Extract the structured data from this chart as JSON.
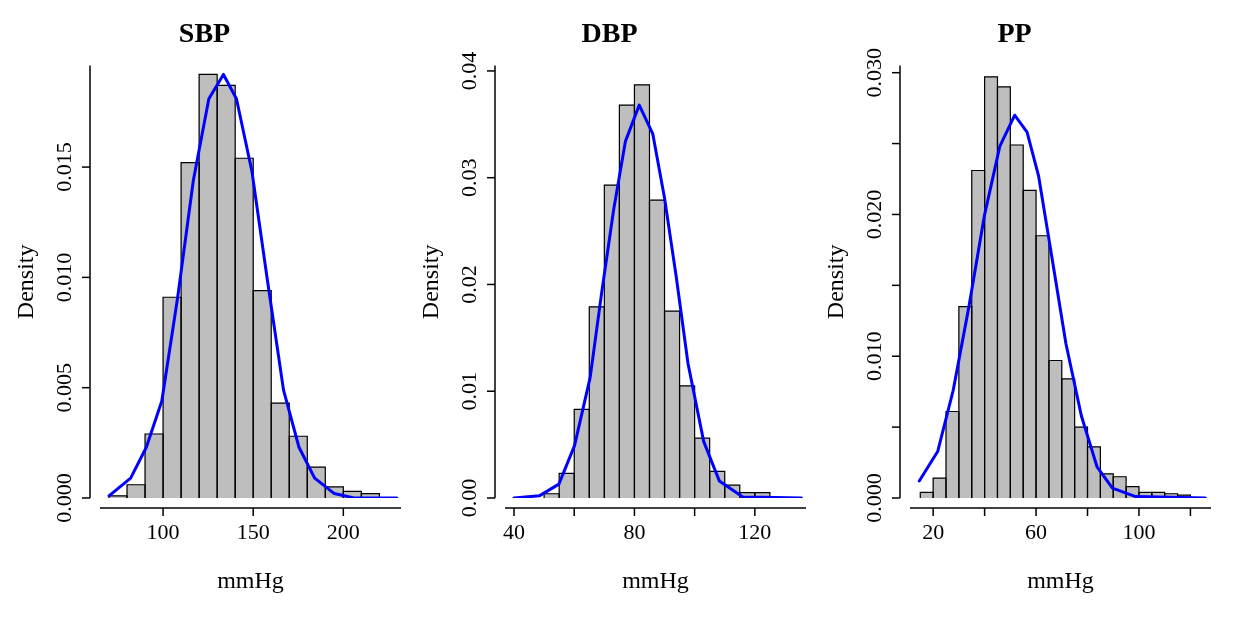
{
  "chart_data": [
    {
      "type": "histogram",
      "title": "SBP",
      "xlabel": "mmHg",
      "ylabel": "Density",
      "color": "#bebebe",
      "bins": [
        70,
        80,
        90,
        100,
        110,
        120,
        130,
        140,
        150,
        160,
        170,
        180,
        190,
        200,
        210,
        220
      ],
      "values": [
        0.0001,
        0.0006,
        0.0029,
        0.0091,
        0.0152,
        0.0192,
        0.0187,
        0.0154,
        0.0094,
        0.0043,
        0.0028,
        0.0014,
        0.0005,
        0.0003,
        0.0002
      ],
      "xlim": [
        65,
        232
      ],
      "ylim": [
        0,
        0.0196
      ],
      "xticks": [
        100,
        150,
        200
      ],
      "yticks": [
        {
          "value": 0,
          "label": "0.000"
        },
        {
          "value": 0.005,
          "label": "0.005"
        },
        {
          "value": 0.01,
          "label": "0.010"
        },
        {
          "value": 0.015,
          "label": "0.015"
        }
      ],
      "grid": false,
      "series": [
        {
          "type": "line",
          "color": "#0000ff",
          "x": [
            70,
            82,
            90.7,
            99.3,
            108.1,
            116.8,
            125.4,
            133.5,
            140.7,
            149.3,
            158,
            166.8,
            175.4,
            184.1,
            195,
            205.9,
            229.7
          ],
          "values": [
            0.0001,
            0.0009,
            0.0023,
            0.0044,
            0.0091,
            0.0144,
            0.0181,
            0.0192,
            0.0181,
            0.0148,
            0.0098,
            0.0049,
            0.0023,
            0.0009,
            0.0002,
            0,
            0
          ]
        }
      ]
    },
    {
      "type": "histogram",
      "title": "DBP",
      "xlabel": "mmHg",
      "ylabel": "Density",
      "color": "#bebebe",
      "bins": [
        50,
        55,
        60,
        65,
        70,
        75,
        80,
        85,
        90,
        95,
        100,
        105,
        110,
        115,
        120,
        125
      ],
      "values": [
        0.0004,
        0.0023,
        0.0083,
        0.0179,
        0.0293,
        0.0368,
        0.0387,
        0.0279,
        0.0175,
        0.0105,
        0.0056,
        0.0025,
        0.0012,
        0.0005,
        0.0005
      ],
      "xlim": [
        37,
        137
      ],
      "ylim": [
        0,
        0.0405
      ],
      "xticks": [
        40,
        {
          "value": 60,
          "label": null
        },
        80,
        {
          "value": 100,
          "label": null
        },
        120
      ],
      "yticks": [
        {
          "value": 0,
          "label": "0.00"
        },
        {
          "value": 0.01,
          "label": "0.01"
        },
        {
          "value": 0.02,
          "label": "0.02"
        },
        {
          "value": 0.03,
          "label": "0.03"
        },
        {
          "value": 0.04,
          "label": "0.04"
        }
      ],
      "grid": false,
      "series": [
        {
          "type": "line",
          "color": "#0000ff",
          "x": [
            40,
            48.4,
            54.9,
            60.1,
            65.3,
            69.2,
            73.1,
            77,
            81.6,
            86.1,
            90,
            93.9,
            97.8,
            103,
            108.2,
            116,
            135.5
          ],
          "values": [
            0,
            0.0002,
            0.0013,
            0.0049,
            0.0113,
            0.0194,
            0.027,
            0.0334,
            0.0368,
            0.0341,
            0.0281,
            0.0207,
            0.0126,
            0.0053,
            0.0016,
            0.0001,
            0
          ]
        }
      ]
    },
    {
      "type": "histogram",
      "title": "PP",
      "xlabel": "mmHg",
      "ylabel": "Density",
      "color": "#bebebe",
      "bins": [
        15,
        20,
        25,
        30,
        35,
        40,
        45,
        50,
        55,
        60,
        65,
        70,
        75,
        80,
        85,
        90,
        95,
        100,
        105,
        110,
        115,
        120
      ],
      "values": [
        0.0004,
        0.0014,
        0.0061,
        0.0135,
        0.0231,
        0.0297,
        0.029,
        0.0249,
        0.0217,
        0.0185,
        0.0097,
        0.0084,
        0.005,
        0.0036,
        0.0017,
        0.0015,
        0.0008,
        0.0004,
        0.0004,
        0.0003,
        0.0002
      ],
      "xlim": [
        11,
        128
      ],
      "ylim": [
        0,
        0.0305
      ],
      "xticks": [
        {
          "value": 20,
          "label": "20"
        },
        {
          "value": 40,
          "label": null
        },
        60,
        {
          "value": 80,
          "label": null
        },
        100,
        {
          "value": 120,
          "label": null
        }
      ],
      "yticks": [
        {
          "value": 0,
          "label": "0.000"
        },
        {
          "value": 0.005,
          "label": null
        },
        {
          "value": 0.01,
          "label": "0.010"
        },
        {
          "value": 0.015,
          "label": null
        },
        {
          "value": 0.02,
          "label": "0.020"
        },
        {
          "value": 0.025,
          "label": null
        },
        {
          "value": 0.03,
          "label": "0.030"
        }
      ],
      "grid": false,
      "series": [
        {
          "type": "line",
          "color": "#0000ff",
          "x": [
            14.6,
            21.8,
            27.8,
            33.9,
            39.9,
            45.9,
            51.7,
            56.5,
            61,
            65.6,
            71.6,
            77.6,
            83.7,
            89.7,
            98.7,
            125.8
          ],
          "values": [
            0.0012,
            0.0033,
            0.0076,
            0.0135,
            0.0199,
            0.0248,
            0.027,
            0.0258,
            0.0227,
            0.0176,
            0.0109,
            0.0058,
            0.0022,
            0.0007,
            0.0001,
            0
          ]
        }
      ]
    }
  ]
}
